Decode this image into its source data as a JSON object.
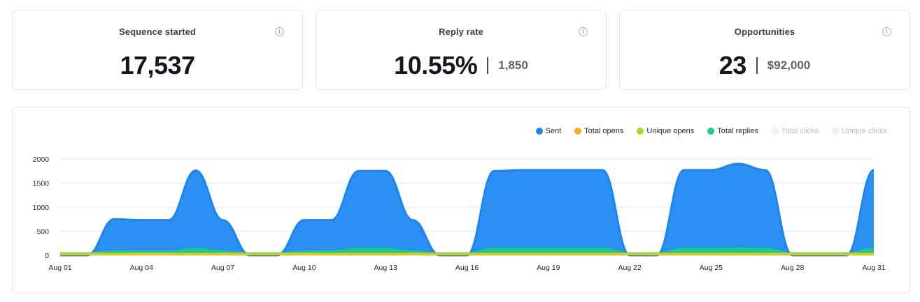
{
  "stats": {
    "sequence": {
      "title": "Sequence started",
      "value": "17,537"
    },
    "reply": {
      "title": "Reply rate",
      "value": "10.55%",
      "secondary": "1,850"
    },
    "opportunities": {
      "title": "Opportunities",
      "value": "23",
      "secondary": "$92,000"
    },
    "info_icon_glyph": "i"
  },
  "legend": [
    {
      "label": "Sent",
      "color": "#1a86f2",
      "muted": false
    },
    {
      "label": "Total opens",
      "color": "#f5b018",
      "muted": false
    },
    {
      "label": "Unique opens",
      "color": "#9be01a",
      "muted": false
    },
    {
      "label": "Total replies",
      "color": "#17cf86",
      "muted": false
    },
    {
      "label": "Total clicks",
      "color": "#e8f1fb",
      "muted": true
    },
    {
      "label": "Unique clicks",
      "color": "#e8f1fb",
      "muted": true
    }
  ],
  "chart_data": {
    "type": "area",
    "x": [
      "Aug 01",
      "Aug 02",
      "Aug 03",
      "Aug 04",
      "Aug 05",
      "Aug 06",
      "Aug 07",
      "Aug 08",
      "Aug 09",
      "Aug 10",
      "Aug 11",
      "Aug 12",
      "Aug 13",
      "Aug 14",
      "Aug 15",
      "Aug 16",
      "Aug 17",
      "Aug 18",
      "Aug 19",
      "Aug 20",
      "Aug 21",
      "Aug 22",
      "Aug 23",
      "Aug 24",
      "Aug 25",
      "Aug 26",
      "Aug 27",
      "Aug 28",
      "Aug 29",
      "Aug 30",
      "Aug 31"
    ],
    "x_tick_labels": [
      "Aug 01",
      "Aug 04",
      "Aug 07",
      "Aug 10",
      "Aug 13",
      "Aug 16",
      "Aug 19",
      "Aug 22",
      "Aug 25",
      "Aug 28",
      "Aug 31"
    ],
    "ylim": [
      0,
      2000
    ],
    "y_ticks": [
      0,
      500,
      1000,
      1500,
      2000
    ],
    "grid": true,
    "legend_position": "top-right",
    "series": [
      {
        "name": "Sent",
        "color": "#1a86f2",
        "values": [
          0,
          0,
          750,
          730,
          730,
          1760,
          730,
          0,
          0,
          730,
          730,
          1750,
          1750,
          730,
          0,
          0,
          1750,
          1770,
          1770,
          1770,
          1770,
          0,
          0,
          1770,
          1770,
          1900,
          1770,
          0,
          0,
          0,
          1770
        ]
      },
      {
        "name": "Total replies",
        "color": "#17cf86",
        "values": [
          40,
          40,
          80,
          70,
          70,
          130,
          70,
          40,
          40,
          70,
          80,
          130,
          130,
          70,
          40,
          40,
          130,
          130,
          130,
          130,
          130,
          40,
          40,
          130,
          130,
          140,
          130,
          40,
          40,
          40,
          130
        ]
      },
      {
        "name": "Unique opens",
        "color": "#9be01a",
        "values": [
          30,
          30,
          30,
          30,
          30,
          30,
          30,
          30,
          30,
          30,
          30,
          30,
          30,
          30,
          30,
          30,
          30,
          30,
          30,
          30,
          30,
          30,
          30,
          30,
          30,
          30,
          30,
          30,
          30,
          30,
          30
        ]
      },
      {
        "name": "Total opens",
        "color": "#e6c21a",
        "values": [
          20,
          20,
          20,
          20,
          20,
          20,
          20,
          20,
          20,
          20,
          20,
          20,
          20,
          20,
          20,
          20,
          20,
          20,
          20,
          20,
          20,
          20,
          20,
          20,
          20,
          20,
          20,
          20,
          20,
          20,
          20
        ]
      }
    ]
  }
}
